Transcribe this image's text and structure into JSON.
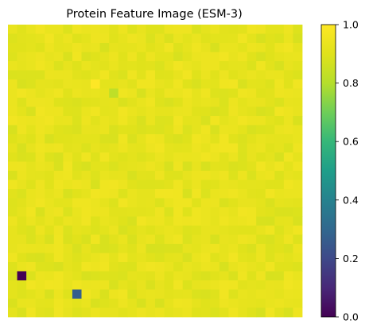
{
  "chart_data": {
    "type": "heatmap",
    "title": "Protein Feature Image (ESM-3)",
    "xlabel": "",
    "ylabel": "",
    "show_axes": false,
    "grid": false,
    "rows": 32,
    "cols": 32,
    "colormap": "viridis",
    "colorbar": {
      "min": 0.0,
      "max": 1.0,
      "ticks": [
        0.0,
        0.2,
        0.4,
        0.6,
        0.8,
        1.0
      ],
      "tick_labels": [
        "0.0",
        "0.2",
        "0.4",
        "0.6",
        "0.8",
        "1.0"
      ],
      "placement": "right"
    },
    "typical_value_range": [
      0.88,
      0.96
    ],
    "notable_cells": [
      {
        "row": 6,
        "col": 9,
        "value": 1.0
      },
      {
        "row": 7,
        "col": 11,
        "value": 0.82
      },
      {
        "row": 27,
        "col": 1,
        "value": 0.0
      },
      {
        "row": 29,
        "col": 7,
        "value": 0.27
      }
    ]
  }
}
